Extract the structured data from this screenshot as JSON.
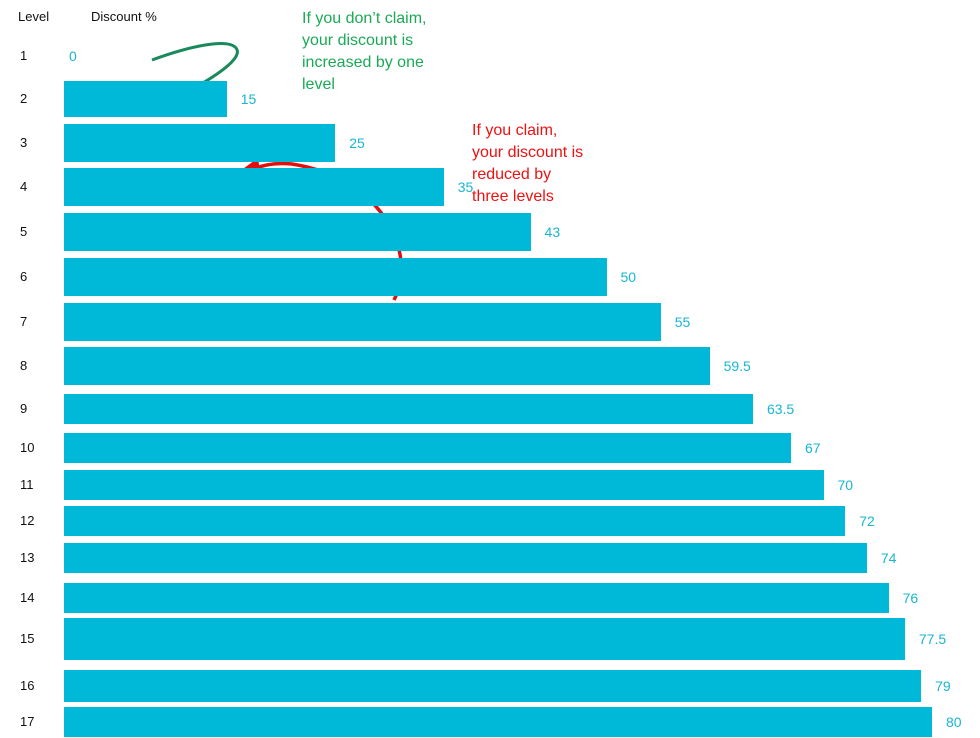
{
  "chart_data": {
    "type": "bar",
    "orientation": "horizontal",
    "column_headers": {
      "level": "Level",
      "discount": "Discount %"
    },
    "categories": [
      "1",
      "2",
      "3",
      "4",
      "5",
      "6",
      "7",
      "8",
      "9",
      "10",
      "11",
      "12",
      "13",
      "14",
      "15",
      "16",
      "17"
    ],
    "values": [
      0,
      15,
      25,
      35,
      43,
      50,
      55,
      59.5,
      63.5,
      67,
      70,
      72,
      74,
      76,
      77.5,
      79,
      80
    ],
    "value_labels": [
      "0",
      "15",
      "25",
      "35",
      "43",
      "50",
      "55",
      "59.5",
      "63.5",
      "67",
      "70",
      "72",
      "74",
      "76",
      "77.5",
      "79",
      "80"
    ],
    "xlim": [
      0,
      80
    ],
    "grid": false,
    "legend": "none",
    "bar_color": "#00B9D8",
    "label_color": "#19B6CF",
    "annotations": [
      {
        "name": "no-claim",
        "lines": [
          "If you don’t claim,",
          "your discount is",
          "increased by one",
          "level"
        ],
        "color": "#1AAA55"
      },
      {
        "name": "claim",
        "lines": [
          "If you claim,",
          "your discount is",
          "reduced by",
          "three levels"
        ],
        "color": "#EE1111"
      }
    ],
    "arrow_colors": {
      "no_claim": "#1A8A5C",
      "claim": "#E01010"
    }
  }
}
